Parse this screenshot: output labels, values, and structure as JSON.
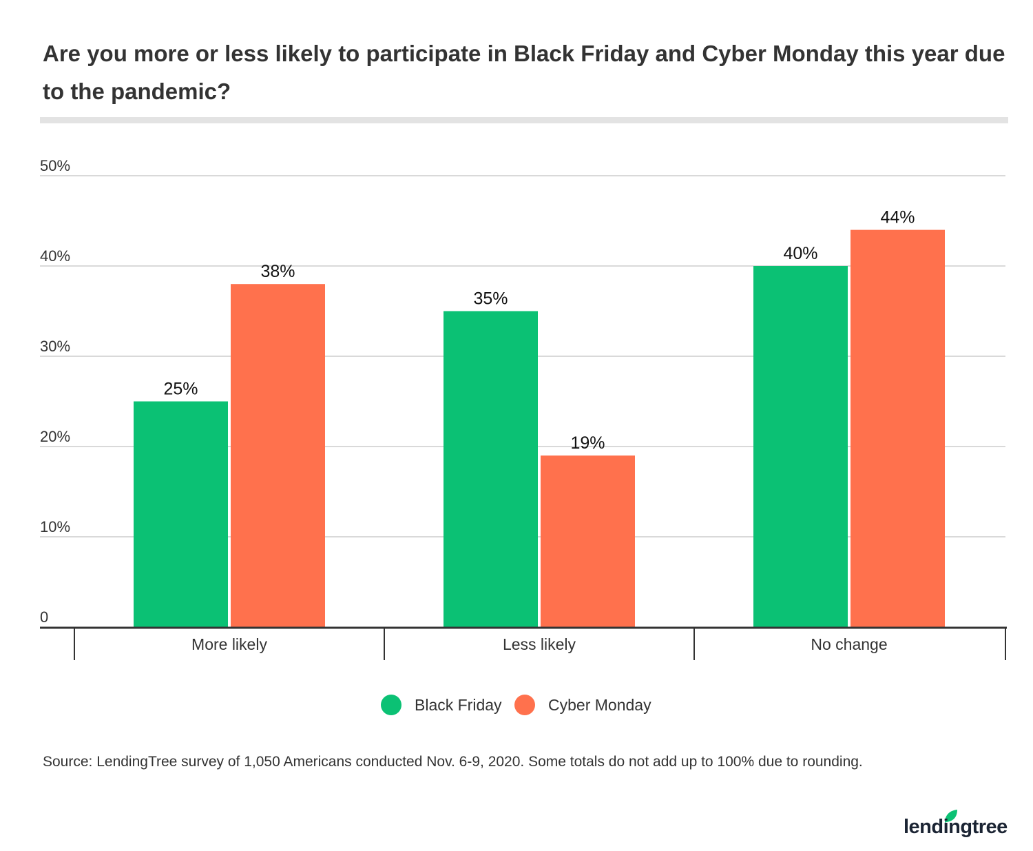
{
  "chart_data": {
    "type": "bar",
    "title": "Are you more or less likely to participate in Black Friday and Cyber Monday this year due to the pandemic?",
    "categories": [
      "More likely",
      "Less likely",
      "No change"
    ],
    "series": [
      {
        "name": "Black Friday",
        "color": "#0bc174",
        "values": [
          25,
          35,
          40
        ],
        "labels": [
          "25%",
          "35%",
          "40%"
        ]
      },
      {
        "name": "Cyber Monday",
        "color": "#ff714d",
        "values": [
          38,
          19,
          44
        ],
        "labels": [
          "38%",
          "19%",
          "44%"
        ]
      }
    ],
    "ylim": [
      0,
      50
    ],
    "yticks": [
      0,
      10,
      20,
      30,
      40,
      50
    ],
    "ytick_labels": [
      "0",
      "10%",
      "20%",
      "30%",
      "40%",
      "50%"
    ],
    "grid": true,
    "legend": "bottom-center",
    "xlabel": "",
    "ylabel": ""
  },
  "source": "Source: LendingTree survey of 1,050 Americans conducted Nov. 6-9, 2020. Some totals do not add up to 100% due to rounding.",
  "logo": {
    "text": "lendingtree",
    "leaf_color": "#0bc174"
  }
}
